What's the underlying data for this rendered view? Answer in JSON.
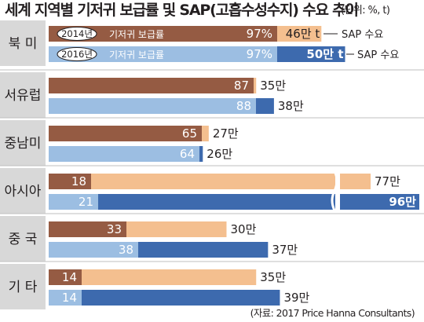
{
  "title": "세계 지역별 기저귀 보급률 및 SAP(고흡수성수지) 수요 추이",
  "unit": "(단위: %, t)",
  "source": "(자료: 2017 Price Hanna Consultants)",
  "colors": {
    "dark_2014": "#955b43",
    "light_2014": "#f4bf8f",
    "light_2016": "#9cbee2",
    "dark_2016": "#3d6aae",
    "panel_bg": "#d8d8d8",
    "separator": "#ffffff"
  },
  "chart_data": {
    "type": "bar",
    "title": "세계 지역별 기저귀 보급률 및 SAP(고흡수성수지) 수요 추이",
    "unit": "(단위: %, t)",
    "legend": {
      "year_2014": "2014년",
      "year_2016": "2016년",
      "penetration_label": "기저귀 보급률",
      "sap_label": "SAP 수요"
    },
    "categories": [
      "북 미",
      "서유럽",
      "중남미",
      "아시아",
      "중 국",
      "기 타"
    ],
    "series": [
      {
        "name": "2014년 기저귀 보급률",
        "values": [
          97,
          87,
          65,
          18,
          33,
          14
        ],
        "labels": [
          "97%",
          "87",
          "65",
          "18",
          "33",
          "14"
        ]
      },
      {
        "name": "2014년 SAP 수요",
        "values": [
          460000,
          350000,
          270000,
          770000,
          300000,
          350000
        ],
        "labels": [
          "46만 t",
          "35만",
          "27만",
          "77만",
          "30만",
          "35만"
        ]
      },
      {
        "name": "2016년 기저귀 보급률",
        "values": [
          97,
          88,
          64,
          21,
          38,
          14
        ],
        "labels": [
          "97%",
          "88",
          "64",
          "21",
          "38",
          "14"
        ]
      },
      {
        "name": "2016년 SAP 수요",
        "values": [
          500000,
          380000,
          260000,
          960000,
          370000,
          390000
        ],
        "labels": [
          "50만 t",
          "38만",
          "26만",
          "96만",
          "37만",
          "39만"
        ]
      }
    ],
    "axis_break": "아시아 SAP 수요 막대 중간 생략 표시"
  }
}
